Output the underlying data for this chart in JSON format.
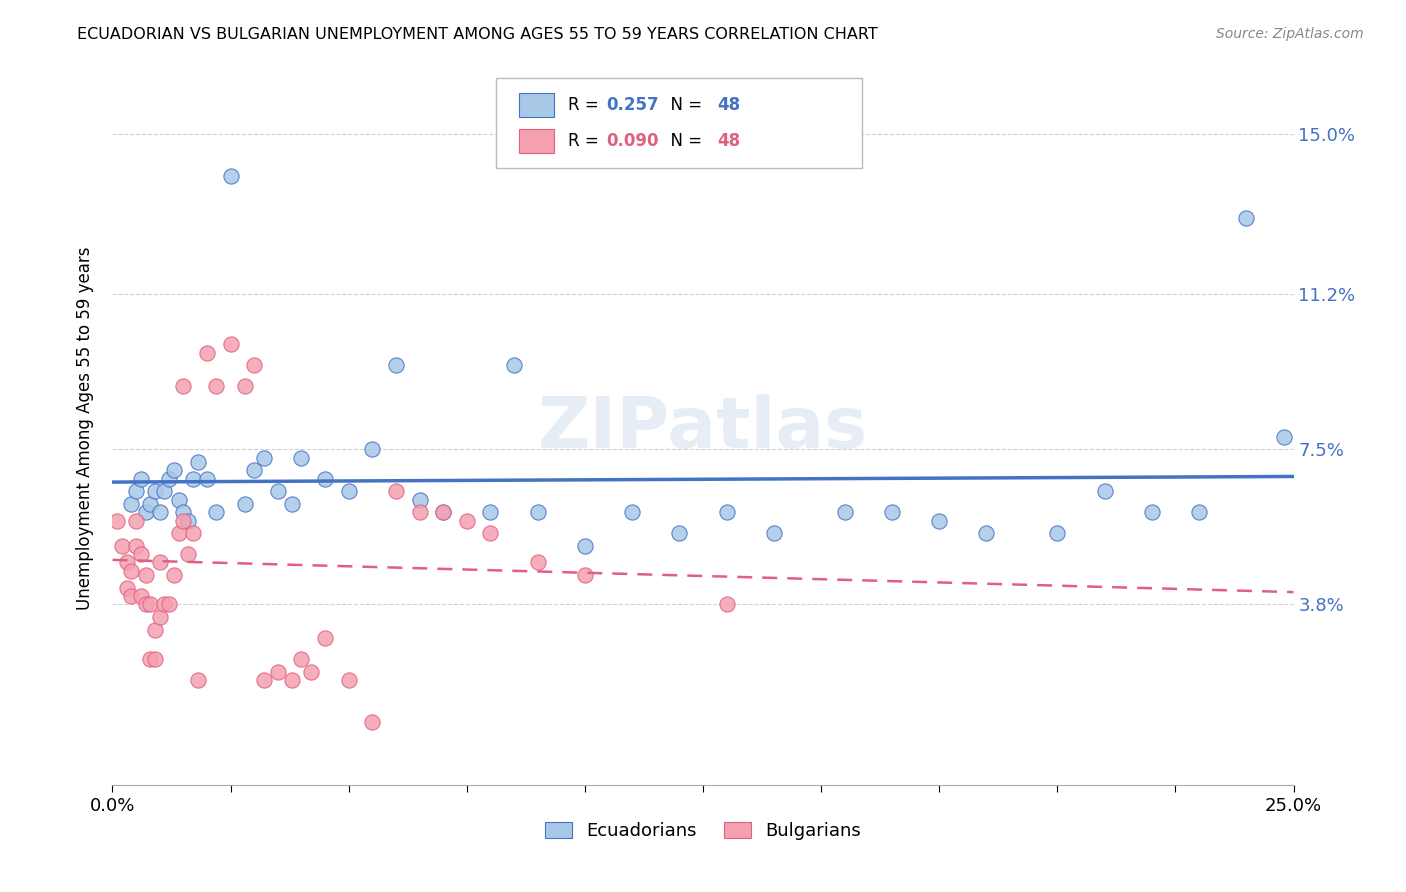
{
  "title": "ECUADORIAN VS BULGARIAN UNEMPLOYMENT AMONG AGES 55 TO 59 YEARS CORRELATION CHART",
  "source": "Source: ZipAtlas.com",
  "ylabel": "Unemployment Among Ages 55 to 59 years",
  "xlim": [
    0.0,
    0.25
  ],
  "ylim": [
    -0.005,
    0.165
  ],
  "ytick_positions": [
    0.038,
    0.075,
    0.112,
    0.15
  ],
  "ytick_labels": [
    "3.8%",
    "7.5%",
    "11.2%",
    "15.0%"
  ],
  "watermark": "ZIPatlas",
  "color_blue": "#a8c8e8",
  "color_pink": "#f4a0b0",
  "line_blue": "#4472c4",
  "line_pink": "#e06080",
  "ecu_x": [
    0.004,
    0.005,
    0.006,
    0.007,
    0.008,
    0.009,
    0.01,
    0.011,
    0.012,
    0.013,
    0.014,
    0.015,
    0.016,
    0.017,
    0.018,
    0.02,
    0.022,
    0.025,
    0.028,
    0.03,
    0.032,
    0.035,
    0.038,
    0.04,
    0.045,
    0.05,
    0.055,
    0.06,
    0.065,
    0.07,
    0.08,
    0.085,
    0.09,
    0.1,
    0.11,
    0.12,
    0.13,
    0.14,
    0.155,
    0.165,
    0.175,
    0.185,
    0.2,
    0.21,
    0.22,
    0.23,
    0.24,
    0.248
  ],
  "ecu_y": [
    0.062,
    0.065,
    0.068,
    0.06,
    0.062,
    0.065,
    0.06,
    0.065,
    0.068,
    0.07,
    0.063,
    0.06,
    0.058,
    0.068,
    0.072,
    0.068,
    0.06,
    0.14,
    0.062,
    0.07,
    0.073,
    0.065,
    0.062,
    0.073,
    0.068,
    0.065,
    0.075,
    0.095,
    0.063,
    0.06,
    0.06,
    0.095,
    0.06,
    0.052,
    0.06,
    0.055,
    0.06,
    0.055,
    0.06,
    0.06,
    0.058,
    0.055,
    0.055,
    0.065,
    0.06,
    0.06,
    0.13,
    0.078
  ],
  "bul_x": [
    0.001,
    0.002,
    0.003,
    0.003,
    0.004,
    0.004,
    0.005,
    0.005,
    0.006,
    0.006,
    0.007,
    0.007,
    0.008,
    0.008,
    0.009,
    0.009,
    0.01,
    0.01,
    0.011,
    0.012,
    0.013,
    0.014,
    0.015,
    0.015,
    0.016,
    0.017,
    0.018,
    0.02,
    0.022,
    0.025,
    0.028,
    0.03,
    0.032,
    0.035,
    0.038,
    0.04,
    0.042,
    0.045,
    0.05,
    0.055,
    0.06,
    0.065,
    0.07,
    0.075,
    0.08,
    0.09,
    0.1,
    0.13
  ],
  "bul_y": [
    0.058,
    0.052,
    0.048,
    0.042,
    0.04,
    0.046,
    0.052,
    0.058,
    0.05,
    0.04,
    0.045,
    0.038,
    0.038,
    0.025,
    0.032,
    0.025,
    0.035,
    0.048,
    0.038,
    0.038,
    0.045,
    0.055,
    0.058,
    0.09,
    0.05,
    0.055,
    0.02,
    0.098,
    0.09,
    0.1,
    0.09,
    0.095,
    0.02,
    0.022,
    0.02,
    0.025,
    0.022,
    0.03,
    0.02,
    0.01,
    0.065,
    0.06,
    0.06,
    0.058,
    0.055,
    0.048,
    0.045,
    0.038
  ]
}
